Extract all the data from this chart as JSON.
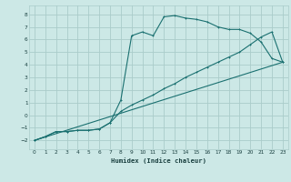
{
  "xlabel": "Humidex (Indice chaleur)",
  "bg_color": "#cce8e6",
  "grid_color": "#aaccca",
  "line_color": "#1a7070",
  "xlim": [
    -0.5,
    23.5
  ],
  "ylim": [
    -2.7,
    8.7
  ],
  "xticks": [
    0,
    1,
    2,
    3,
    4,
    5,
    6,
    7,
    8,
    9,
    10,
    11,
    12,
    13,
    14,
    15,
    16,
    17,
    18,
    19,
    20,
    21,
    22,
    23
  ],
  "yticks": [
    -2,
    -1,
    0,
    1,
    2,
    3,
    4,
    5,
    6,
    7,
    8
  ],
  "series1_x": [
    0,
    1,
    2,
    3,
    4,
    5,
    6,
    7,
    8,
    9,
    10,
    11,
    12,
    13,
    14,
    15,
    16,
    17,
    18,
    19,
    20,
    21,
    22,
    23
  ],
  "series1_y": [
    -2.0,
    -1.7,
    -1.3,
    -1.3,
    -1.2,
    -1.2,
    -1.1,
    -0.6,
    1.2,
    6.3,
    6.6,
    6.3,
    7.8,
    7.9,
    7.7,
    7.6,
    7.4,
    7.0,
    6.8,
    6.8,
    6.5,
    5.8,
    4.5,
    4.2
  ],
  "series2_x": [
    0,
    1,
    2,
    3,
    4,
    5,
    6,
    7,
    8,
    9,
    10,
    11,
    12,
    13,
    14,
    15,
    16,
    17,
    18,
    19,
    20,
    21,
    22,
    23
  ],
  "series2_y": [
    -2.0,
    -1.7,
    -1.3,
    -1.3,
    -1.2,
    -1.2,
    -1.1,
    -0.6,
    0.3,
    0.8,
    1.2,
    1.6,
    2.1,
    2.5,
    3.0,
    3.4,
    3.8,
    4.2,
    4.6,
    5.0,
    5.6,
    6.2,
    6.6,
    4.2
  ],
  "series3_x": [
    0,
    23
  ],
  "series3_y": [
    -2.0,
    4.2
  ]
}
